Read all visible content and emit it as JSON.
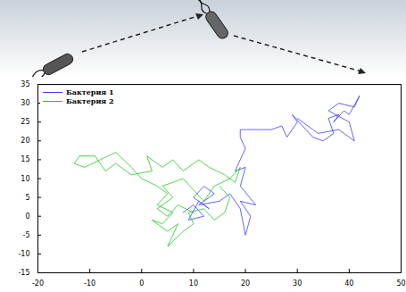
{
  "chart_data": {
    "type": "line",
    "xlim": [
      -20,
      50
    ],
    "xticks": [
      -20,
      -10,
      0,
      10,
      20,
      30,
      40,
      50
    ],
    "ylim": [
      -15,
      35
    ],
    "yticks": [
      -15,
      -10,
      -5,
      0,
      5,
      10,
      15,
      20,
      25,
      30,
      35
    ],
    "grid": false,
    "legend": "top-left",
    "series": [
      {
        "name": "Бактерия 1",
        "color": "#3c3cff",
        "x": [
          8,
          10,
          12,
          9,
          11,
          13,
          10,
          12,
          14,
          11,
          15,
          17,
          19,
          20,
          21,
          19,
          22,
          19,
          20,
          18,
          19,
          20,
          19,
          19,
          22,
          25,
          27,
          28,
          30,
          29,
          31,
          33,
          35,
          37,
          36,
          38,
          37,
          39,
          40,
          42,
          41,
          38,
          36,
          40,
          41,
          38,
          34,
          30
        ],
        "values": [
          1,
          3,
          0,
          -1,
          4,
          2,
          5,
          8,
          6,
          3,
          4,
          6,
          2,
          -5,
          0,
          4,
          3,
          8,
          13,
          12,
          15,
          18,
          21,
          23,
          23,
          23,
          24,
          21,
          25,
          27,
          24,
          21,
          20,
          22,
          26,
          27,
          25,
          28,
          27,
          32,
          29,
          30,
          28,
          25,
          20,
          23,
          22,
          26
        ]
      },
      {
        "name": "Бактерия 2",
        "color": "#22c822",
        "x": [
          10,
          7,
          5,
          3,
          6,
          4,
          8,
          10,
          12,
          14,
          17,
          19,
          18,
          16,
          13,
          11,
          8,
          6,
          4,
          1,
          2,
          -2,
          -5,
          -7,
          -9,
          -12,
          -13,
          -11,
          -8,
          -5,
          -2,
          0,
          3,
          5,
          3,
          6,
          4,
          2,
          5,
          7,
          5,
          8,
          10,
          9,
          12,
          14,
          16,
          17,
          15
        ],
        "values": [
          1,
          3,
          0,
          2,
          5,
          8,
          10,
          7,
          4,
          8,
          10,
          13,
          9,
          11,
          13,
          15,
          12,
          15,
          13,
          16,
          12,
          11,
          14,
          12,
          16,
          16,
          14,
          13,
          15,
          17,
          13,
          10,
          8,
          6,
          3,
          1,
          -2,
          -1,
          -4,
          -2,
          -8,
          -4,
          -2,
          1,
          2,
          -1,
          1,
          5,
          8
        ]
      }
    ]
  }
}
